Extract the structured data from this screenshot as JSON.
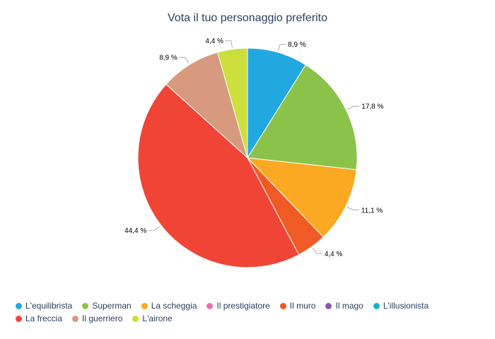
{
  "chart_data": {
    "type": "pie",
    "title": "Vota il tuo personaggio preferito",
    "slices": [
      {
        "name": "L'equilibrista",
        "value": 8.9,
        "label": "8,9 %",
        "color": "#22a8e1"
      },
      {
        "name": "Superman",
        "value": 17.8,
        "label": "17,8 %",
        "color": "#8bc34a"
      },
      {
        "name": "La scheggia",
        "value": 11.1,
        "label": "11,1 %",
        "color": "#fba823"
      },
      {
        "name": "Il prestigiatore",
        "value": 0,
        "label": "",
        "color": "#e870b0"
      },
      {
        "name": "Il muro",
        "value": 4.4,
        "label": "4,4 %",
        "color": "#f05a24"
      },
      {
        "name": "Il mago",
        "value": 0,
        "label": "",
        "color": "#8e5aa0"
      },
      {
        "name": "L'illusionista",
        "value": 0,
        "label": "",
        "color": "#1cb0c0"
      },
      {
        "name": "La freccia",
        "value": 44.4,
        "label": "44,4 %",
        "color": "#f04437"
      },
      {
        "name": "Il guerriero",
        "value": 8.9,
        "label": "8,9 %",
        "color": "#d89a7e"
      },
      {
        "name": "L'airone",
        "value": 4.4,
        "label": "4,4 %",
        "color": "#cddf3c"
      }
    ],
    "legend_position": "bottom"
  }
}
